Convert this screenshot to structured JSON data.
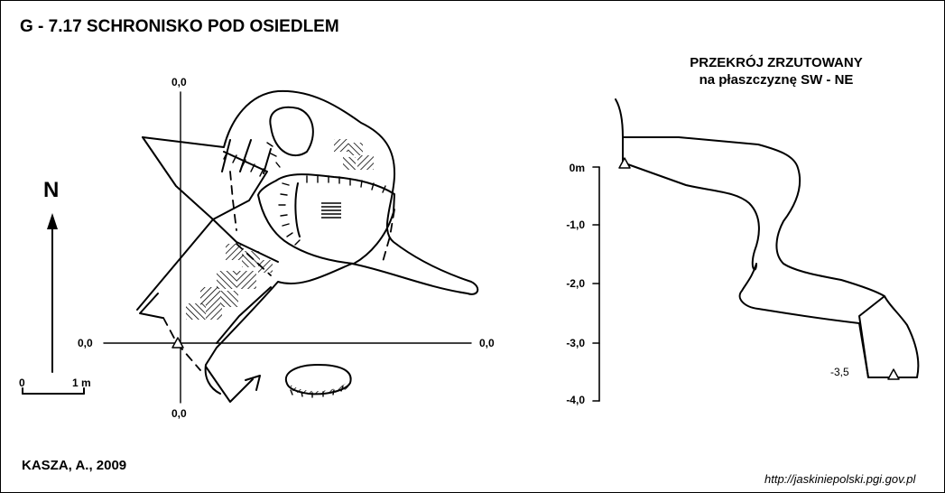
{
  "header": {
    "title": "G - 7.17  SCHRONISKO POD OSIEDLEM"
  },
  "plan": {
    "north_label": "N",
    "coord_top": "0,0",
    "coord_left": "0,0",
    "coord_right": "0,0",
    "coord_bottom": "0,0",
    "scale_zero": "0",
    "scale_unit": "1 m"
  },
  "section": {
    "title_line1": "PRZEKRÓJ ZRZUTOWANY",
    "title_line2": "na płaszczyznę SW - NE",
    "axis_ticks": [
      "0m",
      "-1,0",
      "-2,0",
      "-3,0",
      "-4,0"
    ],
    "station_depth": "-3,5"
  },
  "footer": {
    "author": "KASZA, A., 2009",
    "url": "http://jaskiniepolski.pgi.gov.pl"
  }
}
